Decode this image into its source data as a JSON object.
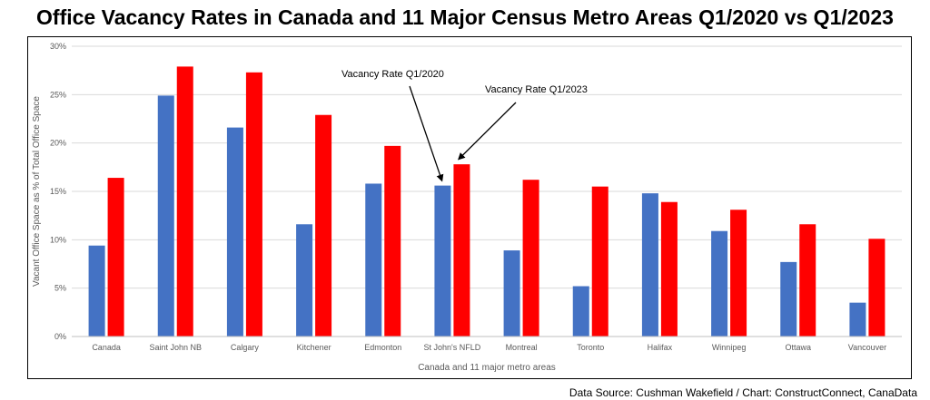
{
  "chart_data": {
    "type": "bar",
    "title": "Office Vacancy Rates in Canada and 11 Major Census Metro Areas Q1/2020 vs Q1/2023",
    "xlabel": "Canada and 11 major metro areas",
    "ylabel": "Vacant Office Space as % of Total Office Space",
    "ylim": [
      0,
      30
    ],
    "yticks": [
      0,
      5,
      10,
      15,
      20,
      25,
      30
    ],
    "ytick_suffix": "%",
    "grid": true,
    "categories": [
      "Canada",
      "Saint John NB",
      "Calgary",
      "Kitchener",
      "Edmonton",
      "St John's NFLD",
      "Montreal",
      "Toronto",
      "Halifax",
      "Winnipeg",
      "Ottawa",
      "Vancouver"
    ],
    "series": [
      {
        "values": [
          9.4,
          24.9,
          21.6,
          11.6,
          15.8,
          15.6,
          8.9,
          5.2,
          14.8,
          10.9,
          7.7,
          3.5
        ],
        "color": "#4472C4"
      },
      {
        "values": [
          16.4,
          27.9,
          27.3,
          22.9,
          19.7,
          17.8,
          16.2,
          15.5,
          13.9,
          13.1,
          11.6,
          10.1
        ],
        "color": "#FF0000"
      }
    ],
    "annotations": [
      {
        "text": "Vacancy Rate Q1/2020",
        "points_to": {
          "category": "St John's NFLD",
          "series": 0
        }
      },
      {
        "text": "Vacancy Rate Q1/2023",
        "points_to": {
          "category": "St John's NFLD",
          "series": 1
        }
      }
    ]
  },
  "source_note": "Data Source: Cushman Wakefield / Chart: ConstructConnect, CanaData"
}
